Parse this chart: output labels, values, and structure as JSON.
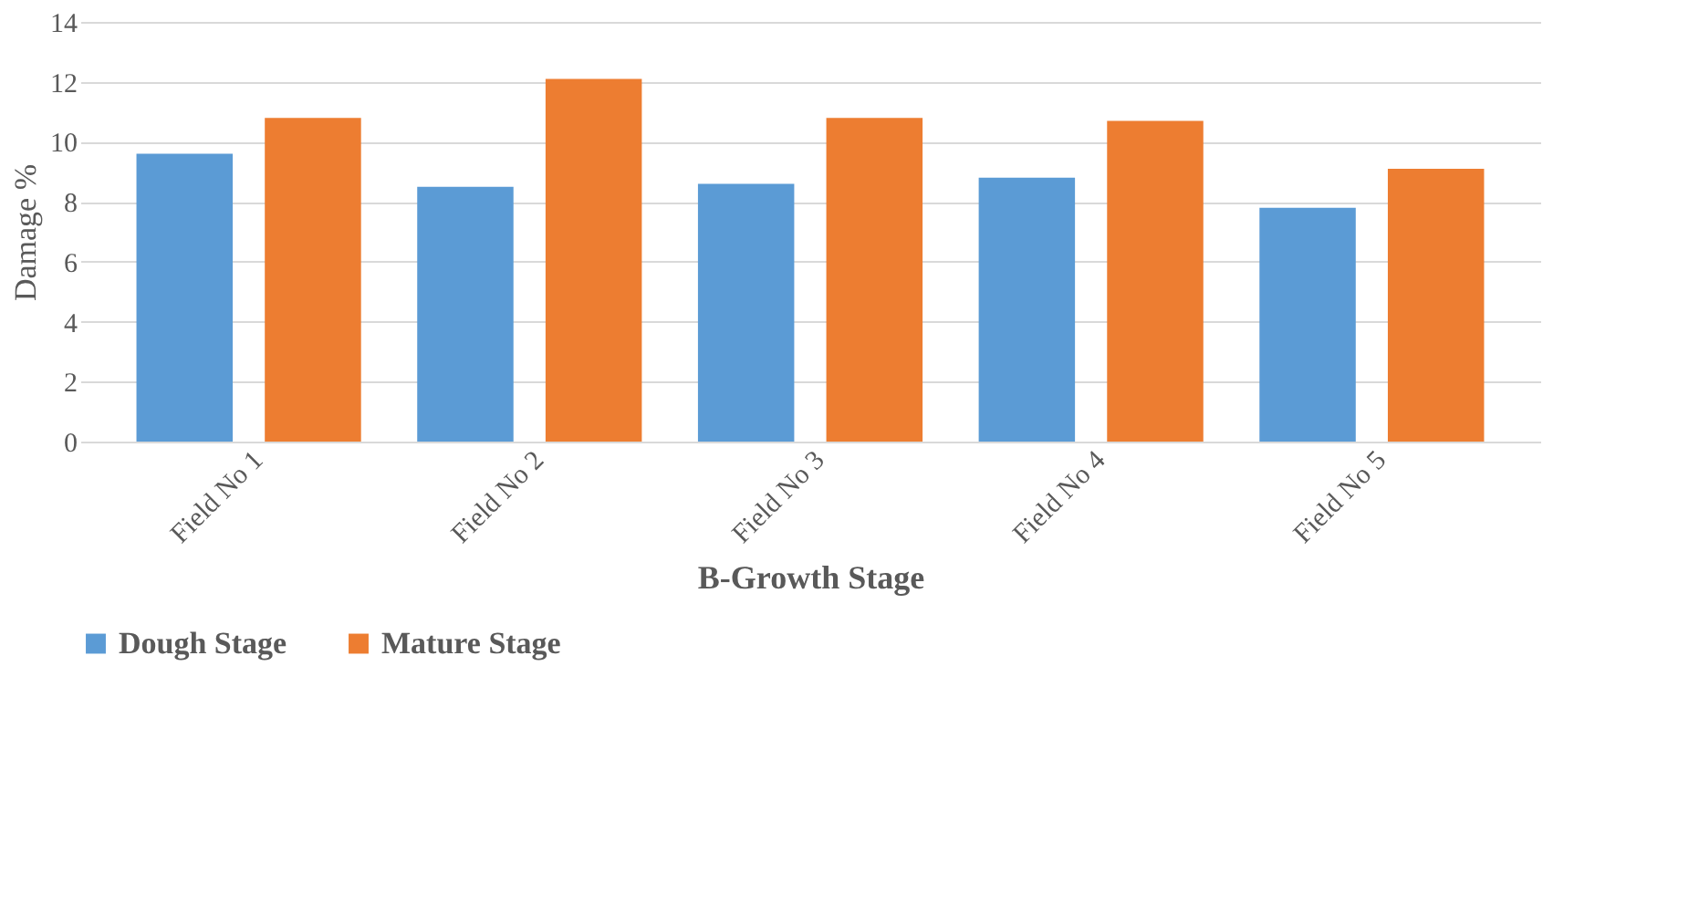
{
  "chart_data": {
    "type": "bar",
    "xlabel": "B-Growth   Stage",
    "ylabel": "Damage  %",
    "categories": [
      "Field No 1",
      "Field No 2",
      "Field No 3",
      "Field No 4",
      "Field No 5"
    ],
    "series": [
      {
        "name": "Dough Stage",
        "color": "#5b9bd5",
        "values": [
          9.6,
          8.5,
          8.6,
          8.8,
          7.8
        ]
      },
      {
        "name": "Mature Stage",
        "color": "#ed7d31",
        "values": [
          10.8,
          12.1,
          10.8,
          10.7,
          9.1
        ]
      }
    ],
    "ylim": [
      0,
      14
    ],
    "yticks": [
      0,
      2,
      4,
      6,
      8,
      10,
      12,
      14
    ],
    "grid": "y",
    "legend": "bottom"
  }
}
